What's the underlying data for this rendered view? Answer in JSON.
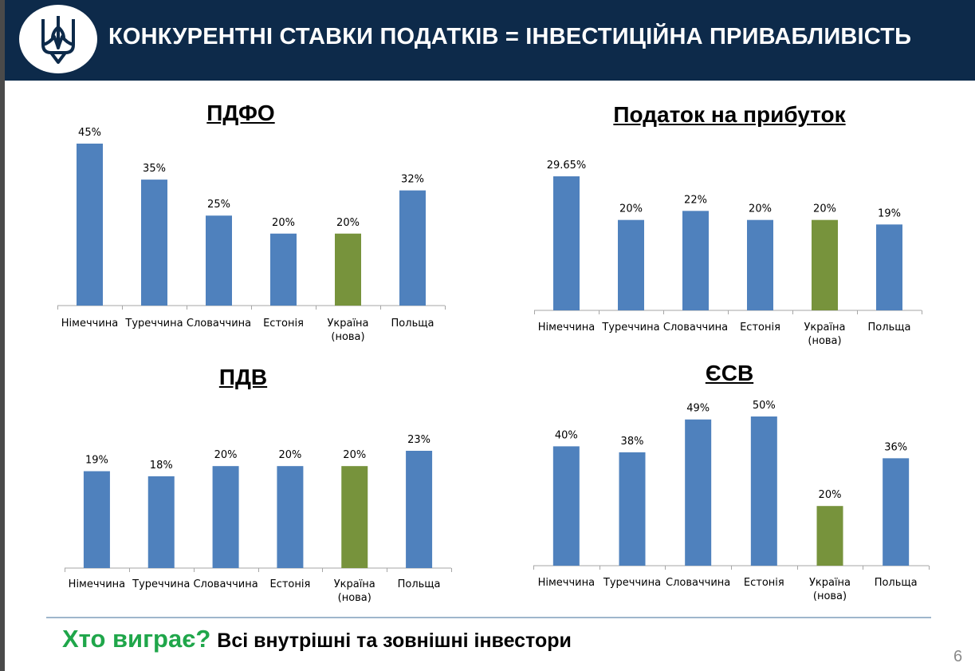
{
  "header": {
    "title": "КОНКУРЕНТНІ СТАВКИ ПОДАТКІВ = ІНВЕСТИЦІЙНА ПРИВАБЛИВІСТЬ"
  },
  "colors": {
    "bar": "#4f81bd",
    "highlight": "#77933c",
    "header_bg": "#0d2a4a",
    "accent_green": "#1fa64a"
  },
  "icons": {
    "emblem": "trident-emblem-icon"
  },
  "chart_data": [
    {
      "type": "bar",
      "title": "ПДФО",
      "categories": [
        "Німеччина",
        "Туреччина",
        "Словаччина",
        "Естонія",
        "Україна (нова)",
        "Польща"
      ],
      "values": [
        45,
        35,
        25,
        20,
        20,
        32
      ],
      "labels": [
        "45%",
        "35%",
        "25%",
        "20%",
        "20%",
        "32%"
      ],
      "highlight_index": 4,
      "ylim": [
        0,
        45
      ]
    },
    {
      "type": "bar",
      "title": "Податок на прибуток",
      "categories": [
        "Німеччина",
        "Туреччина",
        "Словаччина",
        "Естонія",
        "Україна (нова)",
        "Польща"
      ],
      "values": [
        29.65,
        20,
        22,
        20,
        20,
        19
      ],
      "labels": [
        "29.65%",
        "20%",
        "22%",
        "20%",
        "20%",
        "19%"
      ],
      "highlight_index": 4,
      "ylim": [
        0,
        29.65
      ]
    },
    {
      "type": "bar",
      "title": "ПДВ",
      "categories": [
        "Німеччина",
        "Туреччина",
        "Словаччина",
        "Естонія",
        "Україна (нова)",
        "Польща"
      ],
      "values": [
        19,
        18,
        20,
        20,
        20,
        23
      ],
      "labels": [
        "19%",
        "18%",
        "20%",
        "20%",
        "20%",
        "23%"
      ],
      "highlight_index": 4,
      "ylim": [
        0,
        23
      ]
    },
    {
      "type": "bar",
      "title": "ЄСВ",
      "categories": [
        "Німеччина",
        "Туреччина",
        "Словаччина",
        "Естонія",
        "Україна (нова)",
        "Польща"
      ],
      "values": [
        40,
        38,
        49,
        50,
        20,
        36
      ],
      "labels": [
        "40%",
        "38%",
        "49%",
        "50%",
        "20%",
        "36%"
      ],
      "highlight_index": 4,
      "ylim": [
        0,
        50
      ]
    }
  ],
  "footer": {
    "question": "Хто виграє?",
    "answer": "Всі внутрішні та зовнішні інвестори",
    "page_number": "6"
  }
}
